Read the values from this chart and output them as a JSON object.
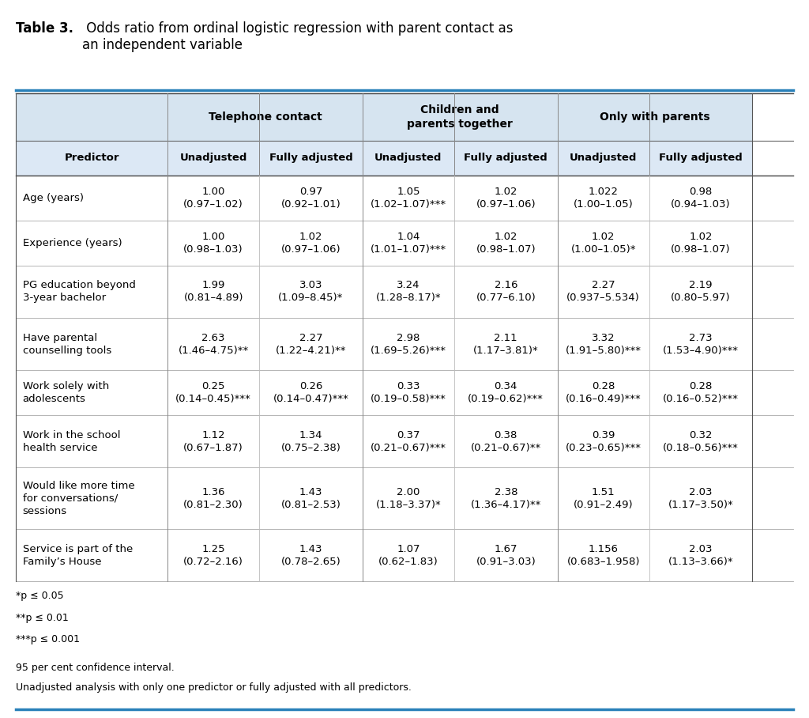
{
  "title_bold": "Table 3.",
  "title_rest": " Odds ratio from ordinal logistic regression with parent contact as\nan independent variable",
  "group_headers": [
    "Telephone contact",
    "Children and\nparents together",
    "Only with parents"
  ],
  "col_headers": [
    "Predictor",
    "Unadjusted",
    "Fully adjusted",
    "Unadjusted",
    "Fully adjusted",
    "Unadjusted",
    "Fully adjusted"
  ],
  "rows": [
    {
      "predictor": "Age (years)",
      "values": [
        "1.00\n(0.97–1.02)",
        "0.97\n(0.92–1.01)",
        "1.05\n(1.02–1.07)***",
        "1.02\n(0.97–1.06)",
        "1.022\n(1.00–1.05)",
        "0.98\n(0.94–1.03)"
      ]
    },
    {
      "predictor": "Experience (years)",
      "values": [
        "1.00\n(0.98–1.03)",
        "1.02\n(0.97–1.06)",
        "1.04\n(1.01–1.07)***",
        "1.02\n(0.98–1.07)",
        "1.02\n(1.00–1.05)*",
        "1.02\n(0.98–1.07)"
      ]
    },
    {
      "predictor": "PG education beyond\n3-year bachelor",
      "values": [
        "1.99\n(0.81–4.89)",
        "3.03\n(1.09–8.45)*",
        "3.24\n(1.28–8.17)*",
        "2.16\n(0.77–6.10)",
        "2.27\n(0.937–5.534)",
        "2.19\n(0.80–5.97)"
      ]
    },
    {
      "predictor": "Have parental\ncounselling tools",
      "values": [
        "2.63\n(1.46–4.75)**",
        "2.27\n(1.22–4.21)**",
        "2.98\n(1.69–5.26)***",
        "2.11\n(1.17–3.81)*",
        "3.32\n(1.91–5.80)***",
        "2.73\n(1.53–4.90)***"
      ]
    },
    {
      "predictor": "Work solely with\nadolescents",
      "values": [
        "0.25\n(0.14–0.45)***",
        "0.26\n(0.14–0.47)***",
        "0.33\n(0.19–0.58)***",
        "0.34\n(0.19–0.62)***",
        "0.28\n(0.16–0.49)***",
        "0.28\n(0.16–0.52)***"
      ]
    },
    {
      "predictor": "Work in the school\nhealth service",
      "values": [
        "1.12\n(0.67–1.87)",
        "1.34\n(0.75–2.38)",
        "0.37\n(0.21–0.67)***",
        "0.38\n(0.21–0.67)**",
        "0.39\n(0.23–0.65)***",
        "0.32\n(0.18–0.56)***"
      ]
    },
    {
      "predictor": "Would like more time\nfor conversations/\nsessions",
      "values": [
        "1.36\n(0.81–2.30)",
        "1.43\n(0.81–2.53)",
        "2.00\n(1.18–3.37)*",
        "2.38\n(1.36–4.17)**",
        "1.51\n(0.91–2.49)",
        "2.03\n(1.17–3.50)*"
      ]
    },
    {
      "predictor": "Service is part of the\nFamily’s House",
      "values": [
        "1.25\n(0.72–2.16)",
        "1.43\n(0.78–2.65)",
        "1.07\n(0.62–1.83)",
        "1.67\n(0.91–3.03)",
        "1.156\n(0.683–1.958)",
        "2.03\n(1.13–3.66)*"
      ]
    }
  ],
  "footnotes": [
    "*p ≤ 0.05",
    "**p ≤ 0.01",
    "***p ≤ 0.001"
  ],
  "footnotes2": [
    "95 per cent confidence interval.",
    "Unadjusted analysis with only one predictor or fully adjusted with all predictors."
  ],
  "header_bg": "#d6e4f0",
  "subheader_bg": "#dce8f5",
  "row_bg": "#ffffff",
  "border_color": "#888888",
  "accent_color": "#2980b9"
}
